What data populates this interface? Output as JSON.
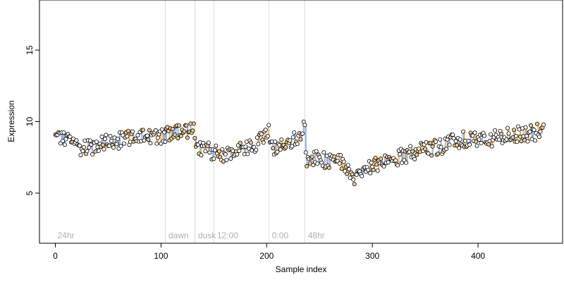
{
  "chart_data": {
    "type": "scatter",
    "xlabel": "Sample index",
    "ylabel": "Expression",
    "xlim": [
      -15,
      480
    ],
    "ylim": [
      1.5,
      18.5
    ],
    "x_ticks": [
      0,
      100,
      200,
      300,
      400
    ],
    "y_ticks": [
      5,
      10,
      15
    ],
    "grid": false,
    "colors": {
      "point_fill_dark": "#ffffff",
      "point_fill_light": "#f6c98a",
      "point_stroke": "#000000",
      "segment_blue": "#8fb0e8",
      "segment_orange": "#f2b35e",
      "divider": "#dcdcdc"
    },
    "regions": [
      {
        "label": "24hr",
        "start": 0
      },
      {
        "label": "dawn",
        "start": 105
      },
      {
        "label": "dusk",
        "start": 133
      },
      {
        "label": "12:00",
        "start": 151
      },
      {
        "label": "0:00",
        "start": 203
      },
      {
        "label": "48hr",
        "start": 237
      }
    ],
    "trend": [
      [
        0,
        8.9
      ],
      [
        15,
        8.7
      ],
      [
        25,
        8.2
      ],
      [
        35,
        8.3
      ],
      [
        50,
        8.6
      ],
      [
        65,
        8.7
      ],
      [
        80,
        9.1
      ],
      [
        95,
        8.9
      ],
      [
        105,
        9.1
      ],
      [
        115,
        9.2
      ],
      [
        125,
        9.3
      ],
      [
        132,
        9.3
      ],
      [
        133,
        8.0
      ],
      [
        145,
        8.0
      ],
      [
        151,
        7.9
      ],
      [
        160,
        7.6
      ],
      [
        170,
        7.9
      ],
      [
        185,
        8.2
      ],
      [
        195,
        8.8
      ],
      [
        202,
        9.4
      ],
      [
        203,
        8.1
      ],
      [
        215,
        8.3
      ],
      [
        225,
        8.7
      ],
      [
        236,
        9.6
      ],
      [
        237,
        7.3
      ],
      [
        250,
        7.4
      ],
      [
        265,
        7.2
      ],
      [
        275,
        7.0
      ],
      [
        283,
        6.2
      ],
      [
        295,
        6.8
      ],
      [
        310,
        7.1
      ],
      [
        330,
        7.6
      ],
      [
        350,
        8.1
      ],
      [
        370,
        8.4
      ],
      [
        390,
        8.8
      ],
      [
        410,
        8.7
      ],
      [
        430,
        9.0
      ],
      [
        450,
        9.2
      ],
      [
        462,
        9.4
      ]
    ],
    "n_points": 463
  }
}
